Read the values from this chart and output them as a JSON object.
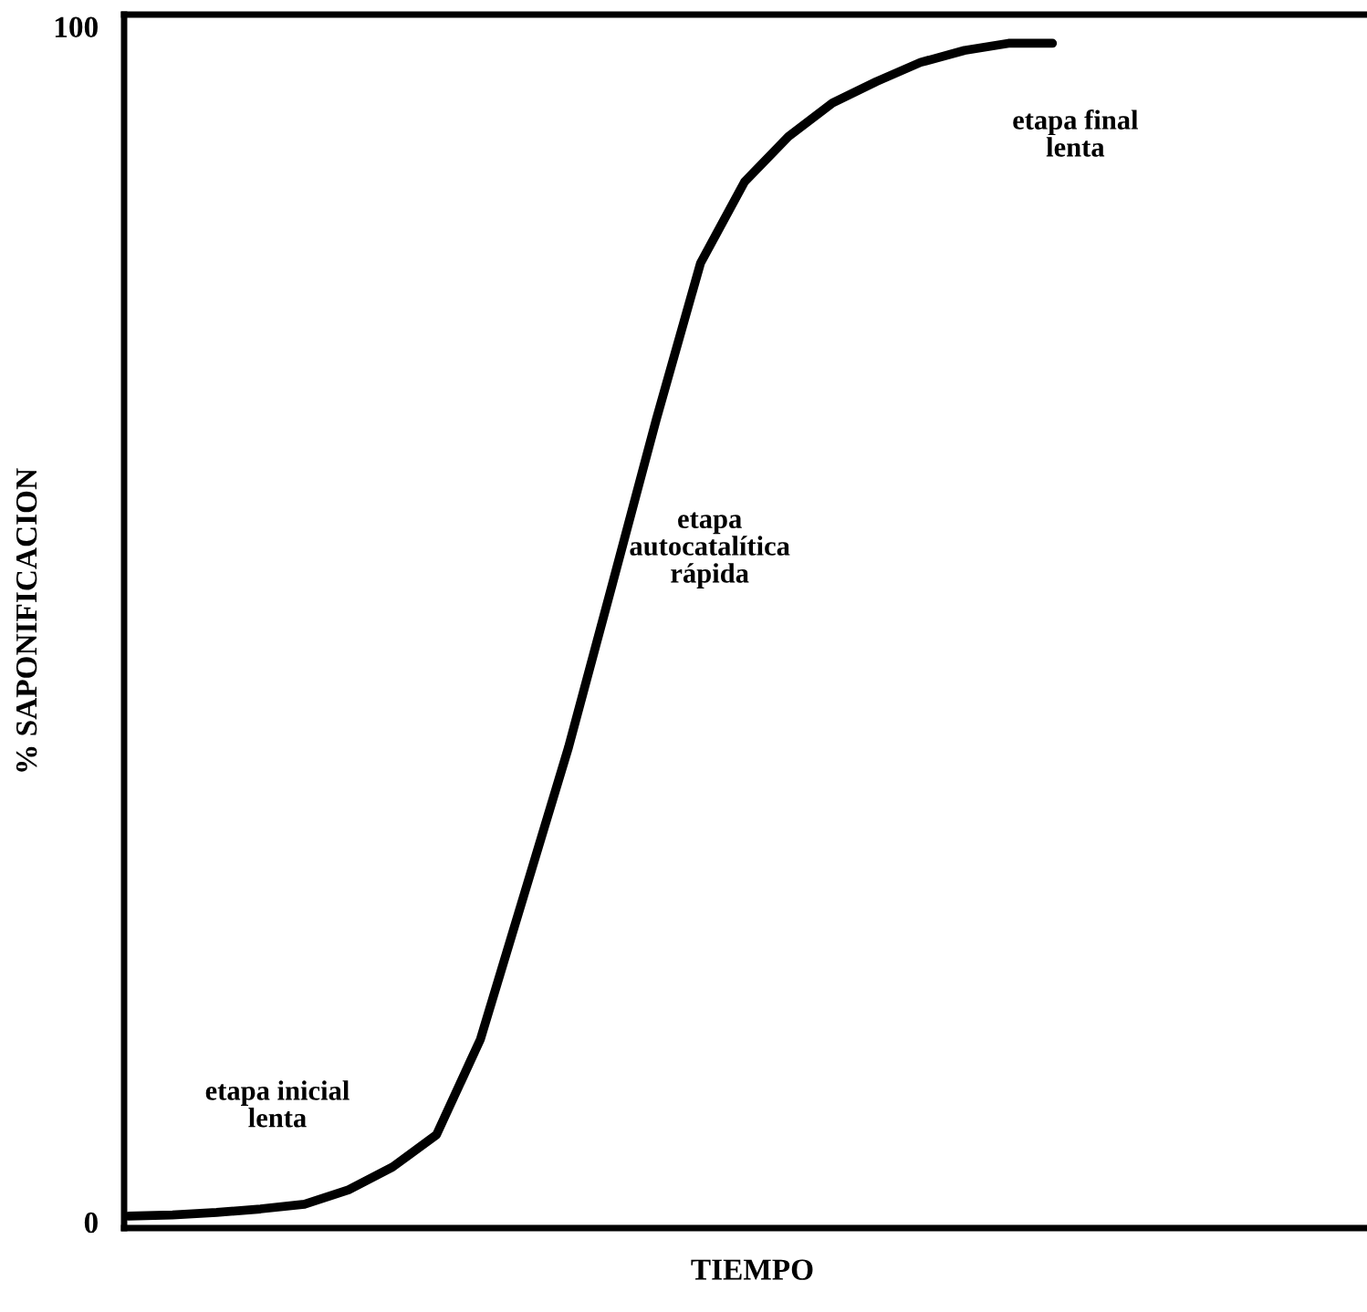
{
  "chart_data": {
    "type": "line",
    "xlabel": "TIEMPO",
    "ylabel": "% SAPONIFICACION",
    "categories": [
      null,
      null,
      null,
      null,
      null,
      null,
      null,
      null,
      null,
      null,
      null,
      null,
      null,
      null,
      null,
      null,
      null,
      null,
      null,
      null,
      null,
      null
    ],
    "series": [
      {
        "color": "#000000",
        "values": [
          0.5,
          0.6,
          0.8,
          1.1,
          1.5,
          2.7,
          4.6,
          7.3,
          15.3,
          27.5,
          39.7,
          53.4,
          67.2,
          80.2,
          87,
          90.8,
          93.6,
          95.4,
          97,
          98,
          98.6,
          98.6
        ]
      }
    ],
    "ylim": [
      -0.5,
      101
    ],
    "yticks": [
      0,
      100
    ],
    "grid": false,
    "legend": false,
    "marker": "none",
    "line_style": "solid",
    "annotations": [
      "etapa inicial\nlenta",
      "etapa\nautocatalítica\nrápida",
      "etapa final\nlenta"
    ]
  }
}
